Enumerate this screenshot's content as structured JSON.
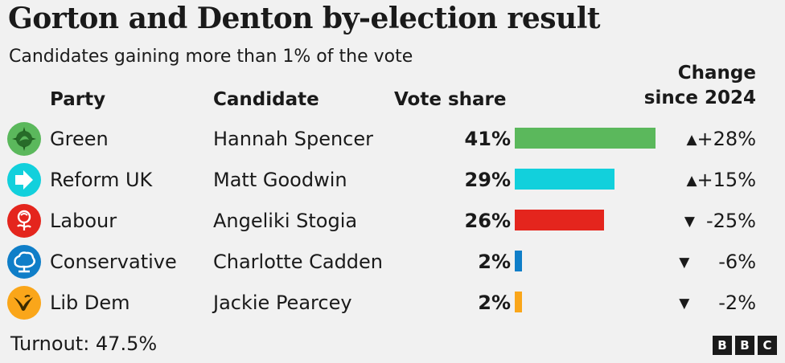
{
  "title": "Gorton and Denton by-election result",
  "subtitle": "Candidates gaining more than 1% of the vote",
  "headers": {
    "party": "Party",
    "candidate": "Candidate",
    "vote_share": "Vote share",
    "change_line1": "Change",
    "change_line2": "since 2024"
  },
  "turnout": "Turnout: 47.5%",
  "brand": [
    "B",
    "B",
    "C"
  ],
  "chart_data": {
    "type": "bar",
    "categories": [
      "Green",
      "Reform UK",
      "Labour",
      "Conservative",
      "Lib Dem"
    ],
    "values": [
      41,
      29,
      26,
      2,
      2
    ],
    "xlim": [
      0,
      100
    ],
    "rows": [
      {
        "party": "Green",
        "candidate": "Hannah Spencer",
        "share": 41,
        "share_label": "41%",
        "change": 28,
        "change_label": "+28%",
        "color": "#5bb85c",
        "logo": "green-party-logo-icon"
      },
      {
        "party": "Reform UK",
        "candidate": "Matt Goodwin",
        "share": 29,
        "share_label": "29%",
        "change": 15,
        "change_label": "+15%",
        "color": "#12d0dc",
        "logo": "reform-uk-logo-icon"
      },
      {
        "party": "Labour",
        "candidate": "Angeliki Stogia",
        "share": 26,
        "share_label": "26%",
        "change": -25,
        "change_label": "-25%",
        "color": "#e4251d",
        "logo": "labour-rose-icon"
      },
      {
        "party": "Conservative",
        "candidate": "Charlotte Cadden",
        "share": 2,
        "share_label": "2%",
        "change": -6,
        "change_label": "-6%",
        "color": "#0f7ec8",
        "logo": "conservative-tree-icon"
      },
      {
        "party": "Lib Dem",
        "candidate": "Jackie Pearcey",
        "share": 2,
        "share_label": "2%",
        "change": -2,
        "change_label": "-2%",
        "color": "#faa61a",
        "logo": "lib-dem-bird-icon"
      }
    ]
  }
}
